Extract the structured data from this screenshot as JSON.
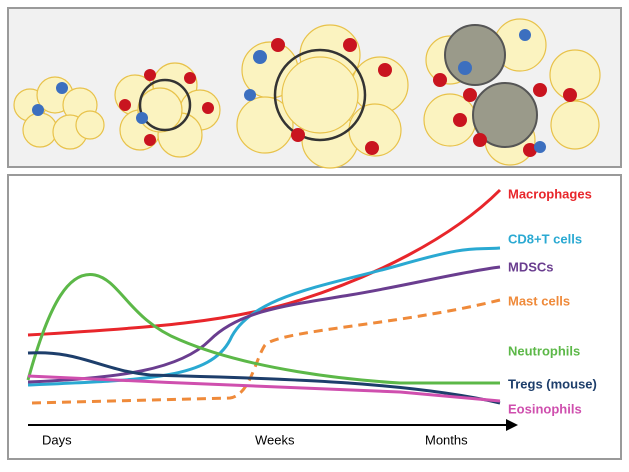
{
  "legend": [
    {
      "name": "Macrophages",
      "color": "#e8262b"
    },
    {
      "name": "CD8+T cells",
      "color": "#2aa9d2"
    },
    {
      "name": "MDSCs",
      "color": "#6a3d8f"
    },
    {
      "name": "Mast cells",
      "color": "#ef8a3a"
    },
    {
      "name": "Neutrophils",
      "color": "#5cb848"
    },
    {
      "name": "Tregs (mouse)",
      "color": "#1d3e6b"
    },
    {
      "name": "Eosinophils",
      "color": "#cf4fae"
    }
  ],
  "time_axis": [
    "Days",
    "Weeks",
    "Months"
  ]
}
